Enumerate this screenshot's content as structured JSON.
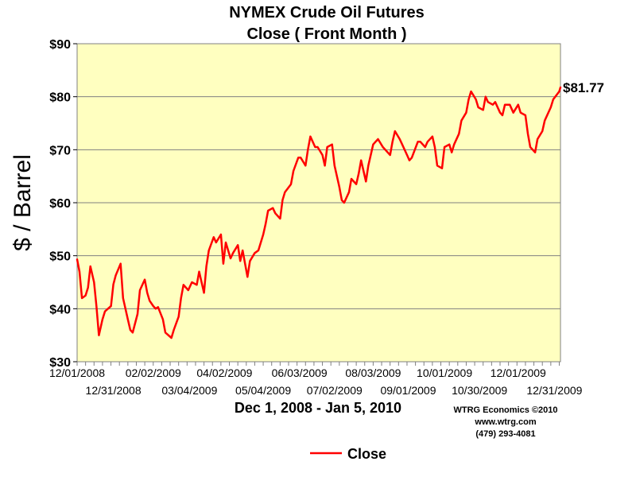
{
  "chart_data": {
    "type": "line",
    "title": "NYMEX Crude Oil Futures",
    "subtitle": "Close ( Front Month )",
    "ylabel": "$ / Barrel",
    "xlabel": "Dec 1, 2008 - Jan 5, 2010",
    "ylim": [
      30,
      90
    ],
    "y_ticks": [
      "$30",
      "$40",
      "$50",
      "$60",
      "$70",
      "$80",
      "$90"
    ],
    "y_tick_values": [
      30,
      40,
      50,
      60,
      70,
      80,
      90
    ],
    "x_ticks_upper": [
      {
        "date": "2008-12-01",
        "label": "12/01/2008"
      },
      {
        "date": "2009-02-02",
        "label": "02/02/2009"
      },
      {
        "date": "2009-04-02",
        "label": "04/02/2009"
      },
      {
        "date": "2009-06-03",
        "label": "06/03/2009"
      },
      {
        "date": "2009-08-03",
        "label": "08/03/2009"
      },
      {
        "date": "2009-10-01",
        "label": "10/01/2009"
      },
      {
        "date": "2009-12-01",
        "label": "12/01/2009"
      }
    ],
    "x_ticks_lower": [
      {
        "date": "2008-12-31",
        "label": "12/31/2008"
      },
      {
        "date": "2009-03-04",
        "label": "03/04/2009"
      },
      {
        "date": "2009-05-04",
        "label": "05/04/2009"
      },
      {
        "date": "2009-07-02",
        "label": "07/02/2009"
      },
      {
        "date": "2009-09-01",
        "label": "09/01/2009"
      },
      {
        "date": "2009-10-30",
        "label": "10/30/2009"
      },
      {
        "date": "2009-12-31",
        "label": "12/31/2009"
      }
    ],
    "xlim": [
      "2008-12-01",
      "2010-01-05"
    ],
    "grid": true,
    "legend_position": "bottom-center",
    "last_value_label": "$81.77",
    "series": [
      {
        "name": "Close",
        "color": "#ff0000",
        "x": [
          "2008-12-01",
          "2008-12-03",
          "2008-12-05",
          "2008-12-08",
          "2008-12-10",
          "2008-12-12",
          "2008-12-15",
          "2008-12-17",
          "2008-12-19",
          "2008-12-22",
          "2008-12-24",
          "2008-12-29",
          "2008-12-31",
          "2009-01-02",
          "2009-01-06",
          "2009-01-08",
          "2009-01-12",
          "2009-01-14",
          "2009-01-16",
          "2009-01-20",
          "2009-01-22",
          "2009-01-26",
          "2009-01-28",
          "2009-01-30",
          "2009-02-02",
          "2009-02-04",
          "2009-02-06",
          "2009-02-10",
          "2009-02-12",
          "2009-02-17",
          "2009-02-19",
          "2009-02-23",
          "2009-02-25",
          "2009-02-27",
          "2009-03-03",
          "2009-03-06",
          "2009-03-10",
          "2009-03-12",
          "2009-03-16",
          "2009-03-18",
          "2009-03-20",
          "2009-03-24",
          "2009-03-26",
          "2009-03-30",
          "2009-04-01",
          "2009-04-03",
          "2009-04-07",
          "2009-04-09",
          "2009-04-13",
          "2009-04-15",
          "2009-04-17",
          "2009-04-21",
          "2009-04-23",
          "2009-04-27",
          "2009-04-30",
          "2009-05-04",
          "2009-05-06",
          "2009-05-08",
          "2009-05-12",
          "2009-05-14",
          "2009-05-18",
          "2009-05-20",
          "2009-05-22",
          "2009-05-27",
          "2009-05-29",
          "2009-06-02",
          "2009-06-04",
          "2009-06-08",
          "2009-06-10",
          "2009-06-12",
          "2009-06-16",
          "2009-06-18",
          "2009-06-22",
          "2009-06-24",
          "2009-06-26",
          "2009-06-30",
          "2009-07-02",
          "2009-07-06",
          "2009-07-08",
          "2009-07-10",
          "2009-07-14",
          "2009-07-16",
          "2009-07-20",
          "2009-07-22",
          "2009-07-24",
          "2009-07-28",
          "2009-07-30",
          "2009-08-03",
          "2009-08-05",
          "2009-08-07",
          "2009-08-11",
          "2009-08-13",
          "2009-08-17",
          "2009-08-19",
          "2009-08-21",
          "2009-08-25",
          "2009-08-27",
          "2009-08-31",
          "2009-09-02",
          "2009-09-04",
          "2009-09-09",
          "2009-09-11",
          "2009-09-15",
          "2009-09-17",
          "2009-09-21",
          "2009-09-23",
          "2009-09-25",
          "2009-09-29",
          "2009-10-01",
          "2009-10-05",
          "2009-10-07",
          "2009-10-09",
          "2009-10-13",
          "2009-10-15",
          "2009-10-19",
          "2009-10-21",
          "2009-10-23",
          "2009-10-27",
          "2009-10-29",
          "2009-11-02",
          "2009-11-04",
          "2009-11-06",
          "2009-11-10",
          "2009-11-12",
          "2009-11-16",
          "2009-11-18",
          "2009-11-20",
          "2009-11-24",
          "2009-11-27",
          "2009-12-01",
          "2009-12-03",
          "2009-12-07",
          "2009-12-09",
          "2009-12-11",
          "2009-12-15",
          "2009-12-17",
          "2009-12-21",
          "2009-12-23",
          "2009-12-28",
          "2009-12-30",
          "2010-01-04",
          "2010-01-05"
        ],
        "values": [
          49.3,
          47.0,
          42.0,
          42.5,
          44.0,
          48.0,
          45.0,
          40.5,
          35.0,
          38.0,
          39.5,
          40.5,
          44.6,
          46.3,
          48.5,
          42.0,
          38.0,
          36.0,
          35.5,
          39.0,
          43.5,
          45.5,
          43.0,
          41.5,
          40.5,
          40.0,
          40.3,
          38.0,
          35.5,
          34.5,
          36.0,
          38.5,
          42.0,
          44.5,
          43.5,
          45.0,
          44.5,
          47.0,
          43.0,
          48.0,
          51.0,
          53.5,
          52.5,
          54.0,
          48.5,
          52.5,
          49.5,
          50.5,
          52.0,
          49.0,
          51.0,
          46.0,
          49.0,
          50.5,
          51.0,
          54.0,
          56.0,
          58.5,
          59.0,
          58.0,
          57.0,
          60.5,
          62.0,
          63.5,
          66.0,
          68.5,
          68.5,
          67.0,
          70.0,
          72.5,
          70.5,
          70.5,
          69.0,
          67.0,
          70.5,
          71.0,
          67.0,
          63.0,
          60.5,
          60.0,
          62.0,
          64.5,
          63.5,
          65.5,
          68.0,
          64.0,
          67.0,
          71.0,
          71.5,
          72.0,
          70.5,
          70.0,
          69.0,
          71.5,
          73.5,
          72.0,
          71.0,
          69.0,
          68.0,
          68.5,
          71.5,
          71.5,
          70.5,
          71.5,
          72.5,
          70.5,
          67.0,
          66.5,
          70.5,
          71.0,
          69.5,
          71.0,
          73.0,
          75.5,
          77.0,
          79.5,
          81.0,
          79.5,
          78.0,
          77.5,
          80.0,
          79.0,
          78.5,
          79.0,
          77.0,
          76.5,
          78.5,
          78.5,
          77.0,
          78.5,
          77.0,
          76.5,
          73.0,
          70.5,
          69.5,
          72.0,
          73.5,
          75.5,
          78.0,
          79.5,
          81.0,
          81.77
        ]
      }
    ]
  },
  "credits": {
    "line1": "WTRG Economics  ©2010",
    "line2": "www.wtrg.com",
    "line3": "(479) 293-4081"
  }
}
